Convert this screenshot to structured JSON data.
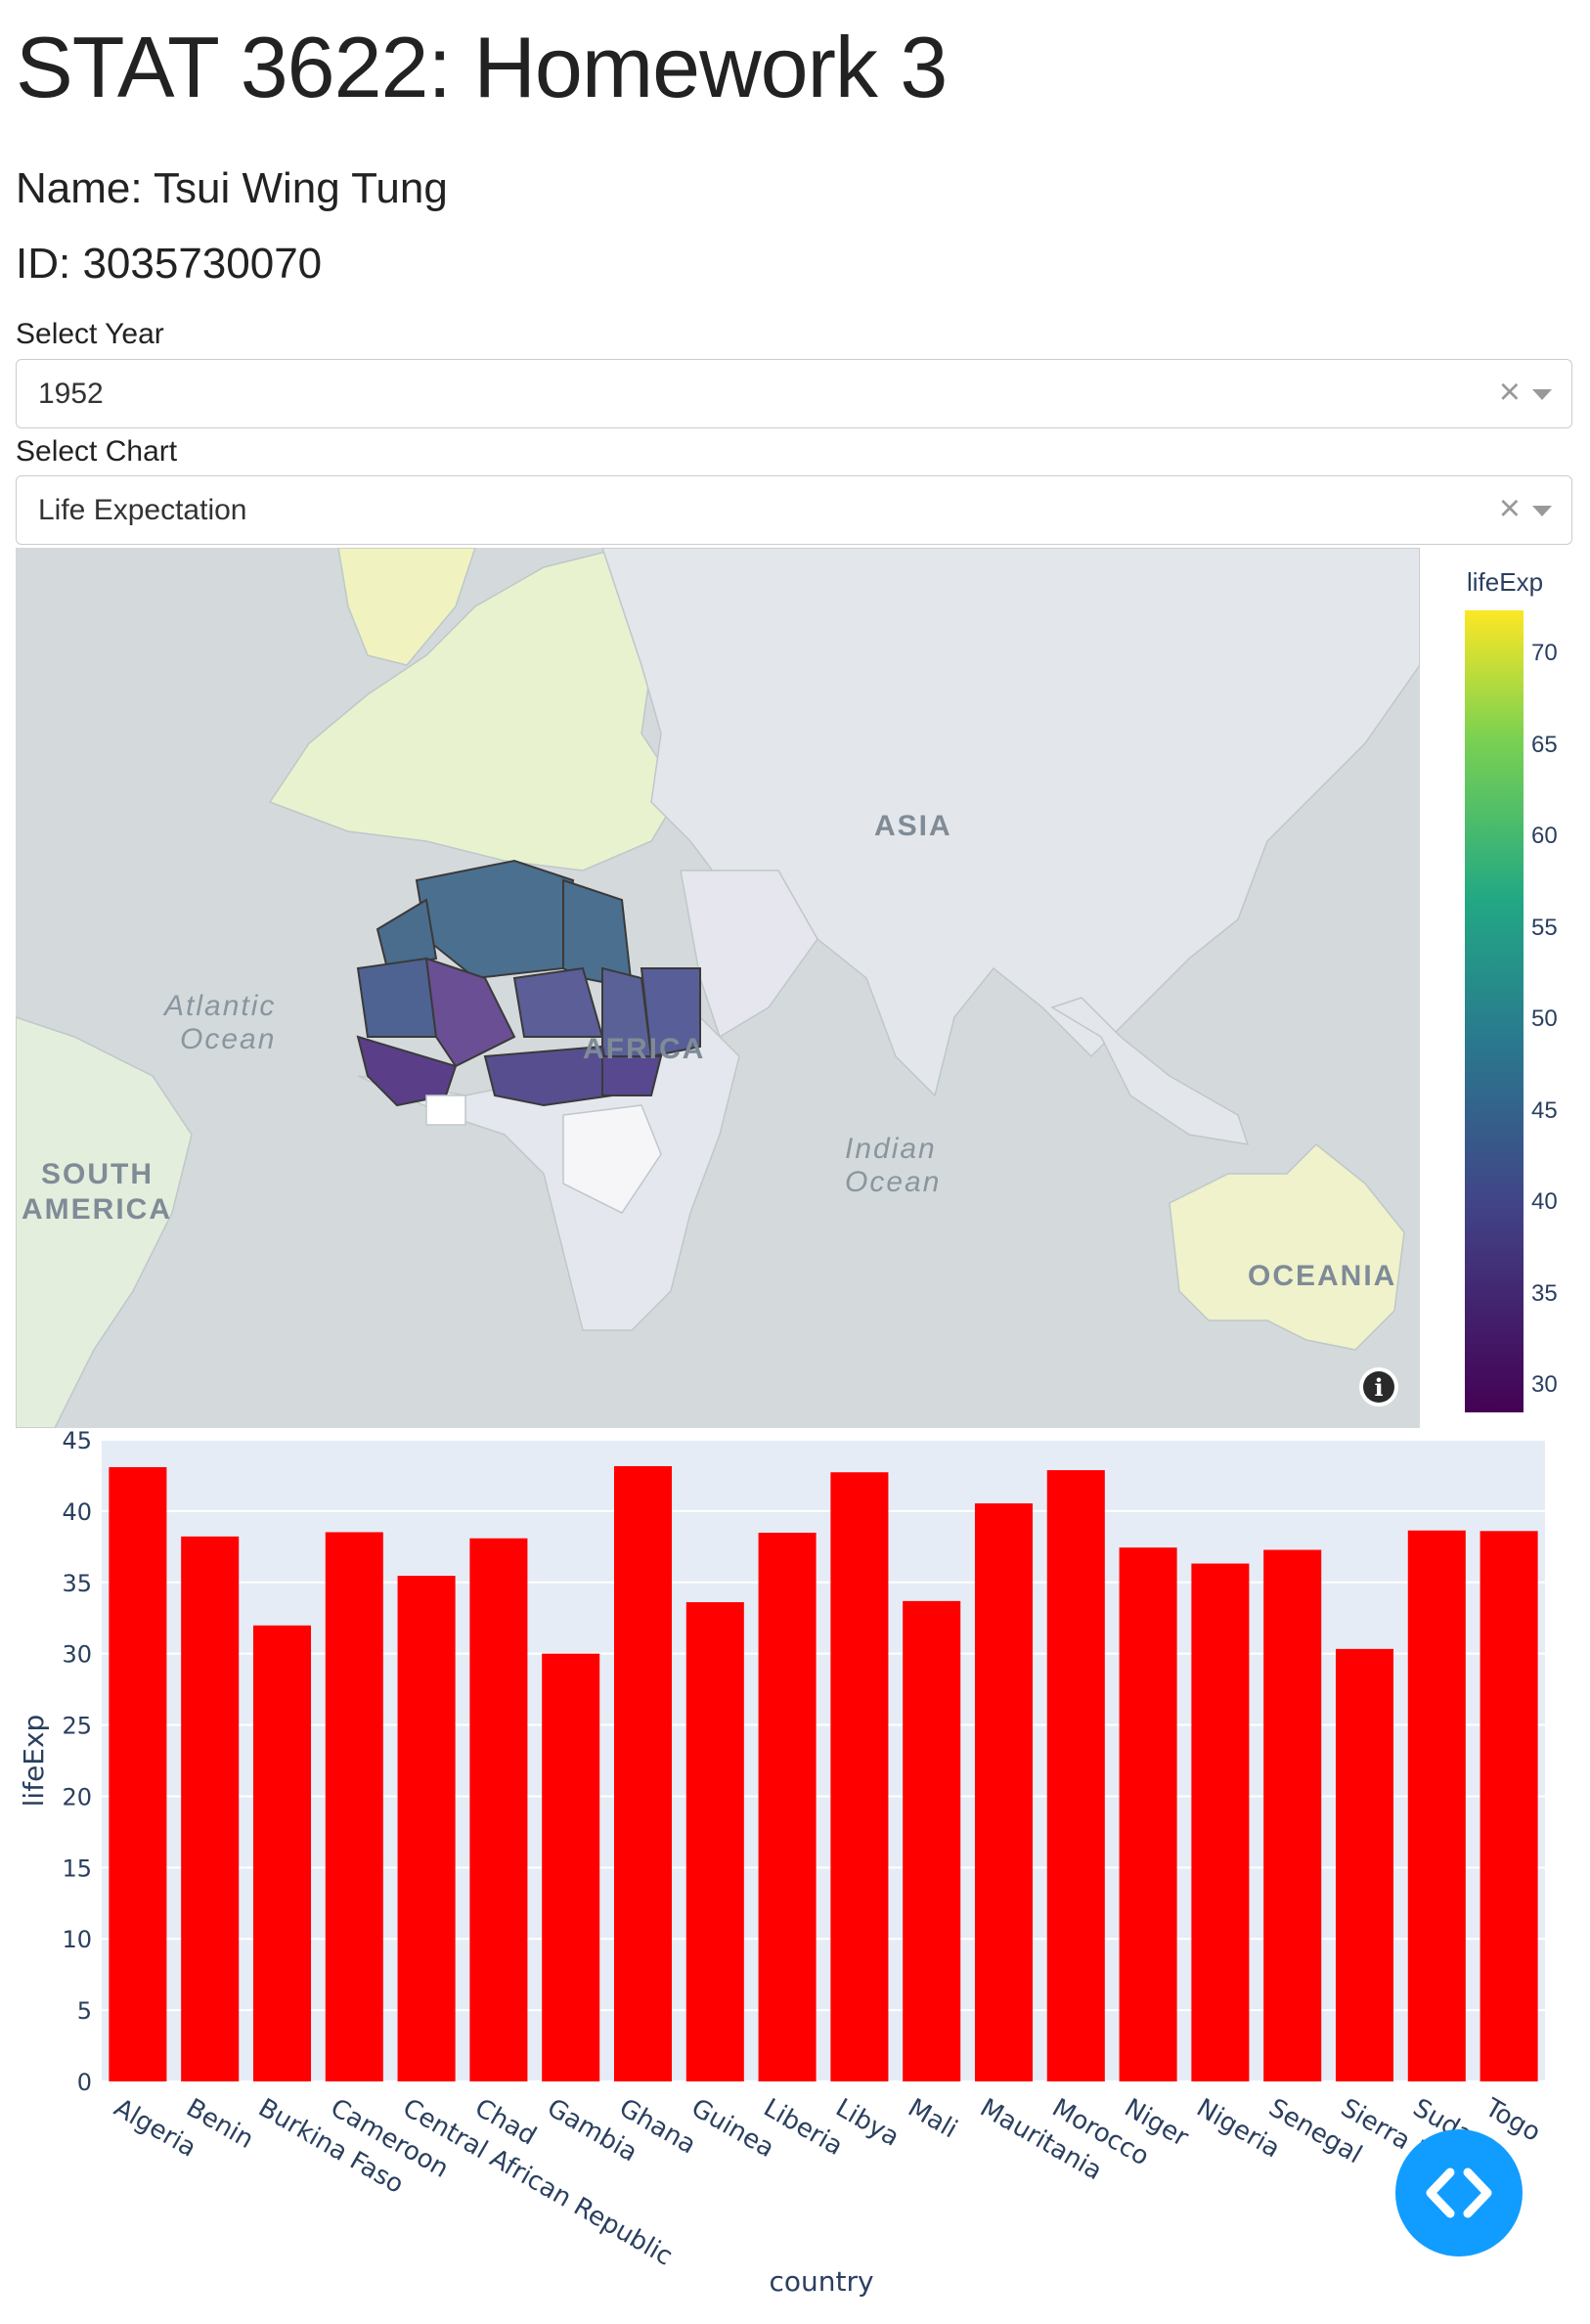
{
  "page": {
    "title": "STAT 3622: Homework 3",
    "name_line": "Name: Tsui Wing Tung",
    "id_line": "ID: 3035730070"
  },
  "controls": {
    "year": {
      "label": "Select Year",
      "value": "1952",
      "clear": "×"
    },
    "chart": {
      "label": "Select Chart",
      "value": "Life Expectation",
      "clear": "×"
    }
  },
  "map": {
    "labels": {
      "asia": "ASIA",
      "atlantic_1": "Atlantic",
      "atlantic_2": "Ocean",
      "africa": "AFRICA",
      "south_america_1": "SOUTH",
      "south_america_2": "AMERICA",
      "indian_1": "Indian",
      "indian_2": "Ocean",
      "oceania": "OCEANIA"
    },
    "info_icon": "i",
    "colorbar": {
      "title": "lifeExp",
      "ticks": [
        "70",
        "65",
        "60",
        "55",
        "50",
        "45",
        "40",
        "35",
        "30"
      ],
      "colors": [
        "#fde725",
        "#7ad151",
        "#22a884",
        "#2a788e",
        "#414487",
        "#440154"
      ]
    }
  },
  "chart_data": {
    "type": "bar",
    "categories": [
      "Algeria",
      "Benin",
      "Burkina Faso",
      "Cameroon",
      "Central African Republic",
      "Chad",
      "Gambia",
      "Ghana",
      "Guinea",
      "Liberia",
      "Libya",
      "Mali",
      "Mauritania",
      "Morocco",
      "Niger",
      "Nigeria",
      "Senegal",
      "Sierra Leone",
      "Sudan",
      "Togo"
    ],
    "values": [
      43.08,
      38.22,
      31.98,
      38.52,
      35.46,
      38.09,
      30.0,
      43.15,
      33.61,
      38.48,
      42.72,
      33.69,
      40.54,
      42.87,
      37.44,
      36.32,
      37.28,
      30.33,
      38.64,
      38.6
    ],
    "title": "",
    "xlabel": "country",
    "ylabel": "lifeExp",
    "ylim": [
      0,
      45
    ],
    "yticks": [
      0,
      5,
      10,
      15,
      20,
      25,
      30,
      35,
      40,
      45
    ],
    "color": "#ff0000",
    "plot_bg": "#e5ecf6",
    "grid": true
  },
  "fab": {
    "icon": "code-brackets-icon"
  }
}
